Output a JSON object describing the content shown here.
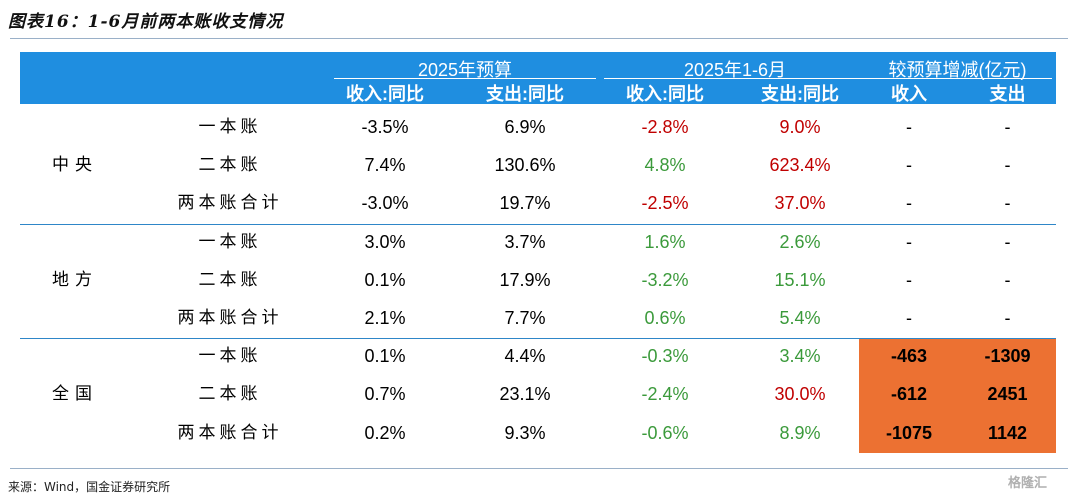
{
  "title": "图表16：1-6月前两本账收支情况",
  "header": {
    "group1": "2025年预算",
    "group2": "2025年1-6月",
    "group3": "较预算增减(亿元)",
    "sub": [
      "收入:同比",
      "支出:同比",
      "收入:同比",
      "支出:同比",
      "收入",
      "支出"
    ]
  },
  "colors": {
    "header_bg": "#1f8ee0",
    "negative_red": "#c00000",
    "positive_green": "#3b9a3b",
    "highlight_orange": "#ec7132"
  },
  "groups": [
    {
      "name": "中央",
      "rows": [
        {
          "label": "一本账",
          "b_rev": "-3.5%",
          "b_exp": "6.9%",
          "a_rev": "-2.8%",
          "a_exp": "9.0%",
          "d_rev": "-",
          "d_exp": "-"
        },
        {
          "label": "二本账",
          "b_rev": "7.4%",
          "b_exp": "130.6%",
          "a_rev": "4.8%",
          "a_exp": "623.4%",
          "d_rev": "-",
          "d_exp": "-"
        },
        {
          "label": "两本账合计",
          "b_rev": "-3.0%",
          "b_exp": "19.7%",
          "a_rev": "-2.5%",
          "a_exp": "37.0%",
          "d_rev": "-",
          "d_exp": "-"
        }
      ]
    },
    {
      "name": "地方",
      "rows": [
        {
          "label": "一本账",
          "b_rev": "3.0%",
          "b_exp": "3.7%",
          "a_rev": "1.6%",
          "a_exp": "2.6%",
          "d_rev": "-",
          "d_exp": "-"
        },
        {
          "label": "二本账",
          "b_rev": "0.1%",
          "b_exp": "17.9%",
          "a_rev": "-3.2%",
          "a_exp": "15.1%",
          "d_rev": "-",
          "d_exp": "-"
        },
        {
          "label": "两本账合计",
          "b_rev": "2.1%",
          "b_exp": "7.7%",
          "a_rev": "0.6%",
          "a_exp": "5.4%",
          "d_rev": "-",
          "d_exp": "-"
        }
      ]
    },
    {
      "name": "全国",
      "rows": [
        {
          "label": "一本账",
          "b_rev": "0.1%",
          "b_exp": "4.4%",
          "a_rev": "-0.3%",
          "a_exp": "3.4%",
          "d_rev": "-463",
          "d_exp": "-1309"
        },
        {
          "label": "二本账",
          "b_rev": "0.7%",
          "b_exp": "23.1%",
          "a_rev": "-2.4%",
          "a_exp": "30.0%",
          "d_rev": "-612",
          "d_exp": "2451"
        },
        {
          "label": "两本账合计",
          "b_rev": "0.2%",
          "b_exp": "9.3%",
          "a_rev": "-0.6%",
          "a_exp": "8.9%",
          "d_rev": "-1075",
          "d_exp": "1142"
        }
      ]
    }
  ],
  "footer": "来源：Wind，国金证券研究所",
  "watermark": "格隆汇"
}
